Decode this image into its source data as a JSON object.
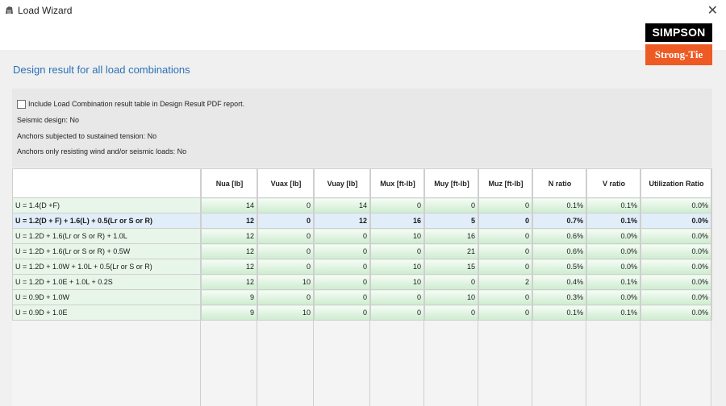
{
  "window": {
    "title": "Load Wizard",
    "close_glyph": "✕"
  },
  "logo": {
    "top_text": "SIMPSON",
    "bottom_text": "Strong-Tie"
  },
  "heading": "Design result for all load combinations",
  "options": {
    "include_label": "Include Load Combination result table in Design Result PDF report.",
    "include_checked": false,
    "seismic_design": "Seismic design: No",
    "sustained_tension": "Anchors subjected to sustained tension: No",
    "wind_seismic_only": "Anchors only resisting wind and/or seismic loads: No"
  },
  "table": {
    "columns": [
      "",
      "Nua [lb]",
      "Vuax [lb]",
      "Vuay [lb]",
      "Mux [ft-lb]",
      "Muy [ft-lb]",
      "Muz [ft-lb]",
      "N ratio",
      "V ratio",
      "Utilization Ratio"
    ],
    "selected_row": 1,
    "rows": [
      [
        "U = 1.4(D +F)",
        "14",
        "0",
        "14",
        "0",
        "0",
        "0",
        "0.1%",
        "0.1%",
        "0.0%"
      ],
      [
        "U = 1.2(D + F) + 1.6(L) + 0.5(Lr or S or R)",
        "12",
        "0",
        "12",
        "16",
        "5",
        "0",
        "0.7%",
        "0.1%",
        "0.0%"
      ],
      [
        "U = 1.2D + 1.6(Lr or S or R) + 1.0L",
        "12",
        "0",
        "0",
        "10",
        "16",
        "0",
        "0.6%",
        "0.0%",
        "0.0%"
      ],
      [
        "U = 1.2D + 1.6(Lr or S or R) + 0.5W",
        "12",
        "0",
        "0",
        "0",
        "21",
        "0",
        "0.6%",
        "0.0%",
        "0.0%"
      ],
      [
        "U = 1.2D + 1.0W + 1.0L + 0.5(Lr or S or R)",
        "12",
        "0",
        "0",
        "10",
        "15",
        "0",
        "0.5%",
        "0.0%",
        "0.0%"
      ],
      [
        "U = 1.2D + 1.0E + 1.0L + 0.2S",
        "12",
        "10",
        "0",
        "10",
        "0",
        "2",
        "0.4%",
        "0.1%",
        "0.0%"
      ],
      [
        "U = 0.9D + 1.0W",
        "9",
        "0",
        "0",
        "0",
        "10",
        "0",
        "0.3%",
        "0.0%",
        "0.0%"
      ],
      [
        "U = 0.9D + 1.0E",
        "9",
        "10",
        "0",
        "0",
        "0",
        "0",
        "0.1%",
        "0.1%",
        "0.0%"
      ]
    ]
  }
}
